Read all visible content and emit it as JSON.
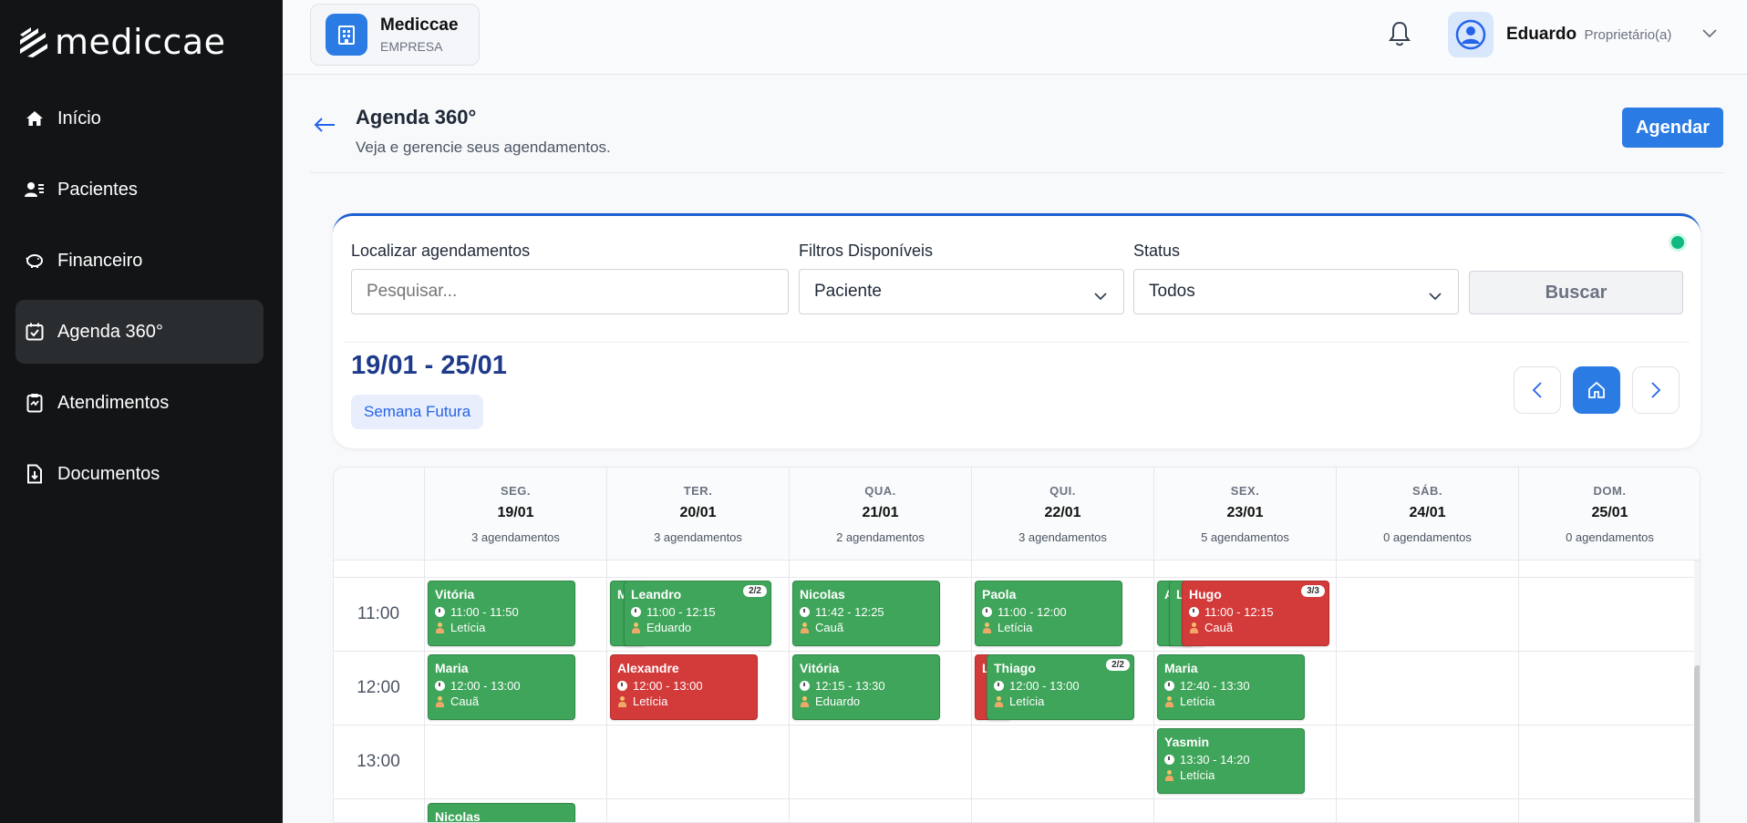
{
  "sidebar": {
    "logo": "mediccae",
    "items": [
      {
        "label": "Início",
        "icon": "home-icon"
      },
      {
        "label": "Pacientes",
        "icon": "patients-icon"
      },
      {
        "label": "Financeiro",
        "icon": "piggy-bank-icon"
      },
      {
        "label": "Agenda 360°",
        "icon": "calendar-check-icon",
        "active": true
      },
      {
        "label": "Atendimentos",
        "icon": "clipboard-icon"
      },
      {
        "label": "Documentos",
        "icon": "document-icon"
      }
    ]
  },
  "topbar": {
    "company_name": "Mediccae",
    "company_type": "EMPRESA",
    "user_name": "Eduardo",
    "user_role": "Proprietário(a)"
  },
  "header": {
    "title": "Agenda 360°",
    "subtitle": "Veja e gerencie seus agendamentos.",
    "agendar": "Agendar"
  },
  "filters": {
    "search_label": "Localizar agendamentos",
    "search_placeholder": "Pesquisar...",
    "filter_label": "Filtros Disponíveis",
    "filter_value": "Paciente",
    "status_label": "Status",
    "status_value": "Todos",
    "buscar": "Buscar"
  },
  "week": {
    "range": "19/01 - 25/01",
    "badge": "Semana Futura"
  },
  "calendar": {
    "days": [
      {
        "name": "SEG.",
        "date": "19/01",
        "count": "3 agendamentos"
      },
      {
        "name": "TER.",
        "date": "20/01",
        "count": "3 agendamentos"
      },
      {
        "name": "QUA.",
        "date": "21/01",
        "count": "2 agendamentos"
      },
      {
        "name": "QUI.",
        "date": "22/01",
        "count": "3 agendamentos"
      },
      {
        "name": "SEX.",
        "date": "23/01",
        "count": "5 agendamentos"
      },
      {
        "name": "SÁB.",
        "date": "24/01",
        "count": "0 agendamentos"
      },
      {
        "name": "DOM.",
        "date": "25/01",
        "count": "0 agendamentos"
      }
    ],
    "hours": [
      "11:00",
      "12:00",
      "13:00"
    ],
    "appointments": [
      {
        "name": "Vitória",
        "time": "11:00 - 11:50",
        "prof": "Letícia",
        "color": "green"
      },
      {
        "name": "Maria",
        "time": "12:00 - 13:00",
        "prof": "Cauã",
        "color": "green"
      },
      {
        "name": "Nicolas",
        "color": "green"
      },
      {
        "name": "M",
        "color": "green"
      },
      {
        "name": "Leandro",
        "time": "11:00 - 12:15",
        "prof": "Eduardo",
        "color": "green",
        "badge": "2/2"
      },
      {
        "name": "Alexandre",
        "time": "12:00 - 13:00",
        "prof": "Letícia",
        "color": "red"
      },
      {
        "name": "Nicolas",
        "time": "11:42 - 12:25",
        "prof": "Cauã",
        "color": "green"
      },
      {
        "name": "Vitória",
        "time": "12:15 - 13:30",
        "prof": "Eduardo",
        "color": "green"
      },
      {
        "name": "Paola",
        "time": "11:00 - 12:00",
        "prof": "Letícia",
        "color": "green"
      },
      {
        "name": "L",
        "color": "red"
      },
      {
        "name": "Thiago",
        "time": "12:00 - 13:00",
        "prof": "Letícia",
        "color": "green",
        "badge": "2/2"
      },
      {
        "name": "A",
        "color": "green"
      },
      {
        "name": "L",
        "color": "green"
      },
      {
        "name": "Hugo",
        "time": "11:00 - 12:15",
        "prof": "Cauã",
        "color": "red",
        "badge": "3/3"
      },
      {
        "name": "Maria",
        "time": "12:40 - 13:30",
        "prof": "Letícia",
        "color": "green"
      },
      {
        "name": "Yasmin",
        "time": "13:30 - 14:20",
        "prof": "Letícia",
        "color": "green"
      }
    ]
  },
  "colors": {
    "sidebar_bg": "#121416",
    "primary": "#2a7be4",
    "appt_green": "#3fa55a",
    "appt_red": "#d33a3a",
    "title_blue": "#1e3a8a"
  }
}
